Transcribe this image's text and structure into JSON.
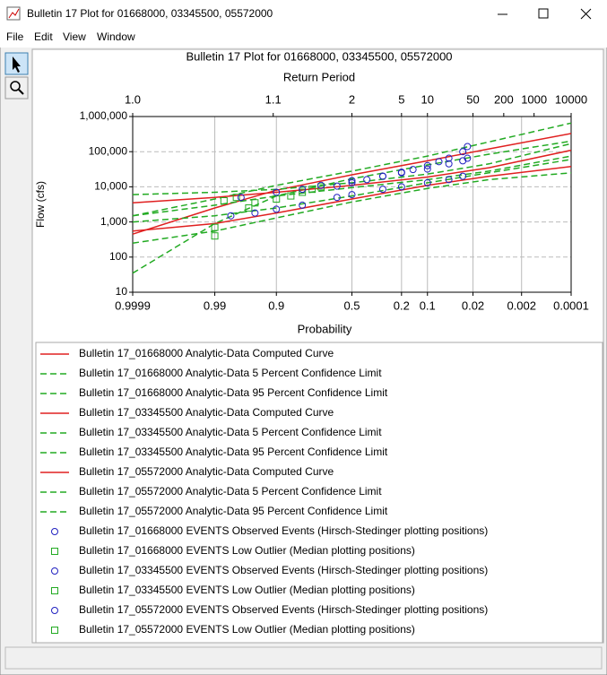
{
  "window": {
    "title": "Bulletin 17 Plot for 01668000, 03345500, 05572000",
    "menu": [
      "File",
      "Edit",
      "View",
      "Window"
    ]
  },
  "chart_data": {
    "type": "probability",
    "title": "Bulletin 17 Plot for 01668000, 03345500, 05572000",
    "x2label": "Return Period",
    "xlabel": "Probability",
    "ylabel": "Flow (cfs)",
    "log_y": true,
    "grid": true,
    "ylim": [
      10,
      1000000
    ],
    "yticks": [
      10,
      100,
      {
        "value": 1000,
        "label": "1,000"
      },
      {
        "value": 10000,
        "label": "10,000"
      },
      {
        "value": 100000,
        "label": "100,000"
      },
      {
        "value": 1000000,
        "label": "1,000,000"
      }
    ],
    "xlim": [
      0.9999,
      0.0001
    ],
    "xticks": [
      0.9999,
      0.99,
      0.9,
      0.5,
      0.2,
      0.1,
      0.02,
      0.002,
      0.0001
    ],
    "x2ticks": [
      {
        "value": 1.0001,
        "label": "1.0"
      },
      1.1,
      2,
      5,
      10,
      50,
      200,
      1000,
      10000
    ],
    "series": [
      {
        "name": "Bulletin 17_01668000 Analytic-Data Computed Curve",
        "style": "solid",
        "color": "#e02020",
        "x": [
          0.9999,
          0.99,
          0.9,
          0.5,
          0.1,
          0.01,
          0.0001
        ],
        "values": [
          450,
          2500,
          8000,
          22000,
          55000,
          120000,
          330000
        ]
      },
      {
        "name": "Bulletin 17_01668000 Analytic-Data 5 Percent Confidence Limit",
        "style": "dashed",
        "color": "#22aa22",
        "x": [
          0.9999,
          0.99,
          0.9,
          0.5,
          0.1,
          0.01,
          0.0001
        ],
        "values": [
          1500,
          4500,
          11000,
          28000,
          75000,
          190000,
          650000
        ]
      },
      {
        "name": "Bulletin 17_01668000 Analytic-Data 95 Percent Confidence Limit",
        "style": "dashed",
        "color": "#22aa22",
        "x": [
          0.9999,
          0.99,
          0.9,
          0.5,
          0.1,
          0.01,
          0.0001
        ],
        "values": [
          35,
          900,
          5500,
          17000,
          42000,
          85000,
          200000
        ]
      },
      {
        "name": "Bulletin 17_03345500 Analytic-Data Computed Curve",
        "style": "solid",
        "color": "#e02020",
        "x": [
          0.9999,
          0.99,
          0.9,
          0.5,
          0.1,
          0.01,
          0.0001
        ],
        "values": [
          3500,
          5000,
          7000,
          11000,
          19000,
          35000,
          110000
        ]
      },
      {
        "name": "Bulletin 17_03345500 Analytic-Data 5 Percent Confidence Limit",
        "style": "dashed",
        "color": "#22aa22",
        "x": [
          0.9999,
          0.99,
          0.9,
          0.5,
          0.1,
          0.01,
          0.0001
        ],
        "values": [
          6000,
          7000,
          8500,
          13000,
          23000,
          45000,
          170000
        ]
      },
      {
        "name": "Bulletin 17_03345500 Analytic-Data 95 Percent Confidence Limit",
        "style": "dashed",
        "color": "#22aa22",
        "x": [
          0.9999,
          0.99,
          0.9,
          0.5,
          0.1,
          0.01,
          0.0001
        ],
        "values": [
          1500,
          3000,
          5500,
          9500,
          16000,
          28000,
          75000
        ]
      },
      {
        "name": "Bulletin 17_05572000 Analytic-Data Computed Curve",
        "style": "solid",
        "color": "#e02020",
        "x": [
          0.9999,
          0.99,
          0.9,
          0.5,
          0.1,
          0.01,
          0.0001
        ],
        "values": [
          550,
          900,
          1800,
          4500,
          11000,
          20000,
          38000
        ]
      },
      {
        "name": "Bulletin 17_05572000 Analytic-Data 5 Percent Confidence Limit",
        "style": "dashed",
        "color": "#22aa22",
        "x": [
          0.9999,
          0.99,
          0.9,
          0.5,
          0.1,
          0.01,
          0.0001
        ],
        "values": [
          1000,
          1500,
          2500,
          5500,
          13000,
          25000,
          60000
        ]
      },
      {
        "name": "Bulletin 17_05572000 Analytic-Data 95 Percent Confidence Limit",
        "style": "dashed",
        "color": "#22aa22",
        "x": [
          0.9999,
          0.99,
          0.9,
          0.5,
          0.1,
          0.01,
          0.0001
        ],
        "values": [
          250,
          550,
          1300,
          3700,
          9000,
          16000,
          25000
        ]
      },
      {
        "name": "Bulletin 17_01668000 EVENTS Observed Events (Hirsch-Stedinger plotting positions)",
        "style": "circle",
        "color": "#2020c0",
        "x": [
          0.6,
          0.5,
          0.4,
          0.3,
          0.2,
          0.15,
          0.1,
          0.07,
          0.05,
          0.03,
          0.025
        ],
        "values": [
          10500,
          13000,
          16000,
          20000,
          26000,
          31000,
          40000,
          52000,
          65000,
          100000,
          140000
        ]
      },
      {
        "name": "Bulletin 17_01668000 EVENTS Low Outlier (Median plotting positions)",
        "style": "square",
        "color": "#22aa22",
        "x": [
          0.99,
          0.99,
          0.985,
          0.975,
          0.96,
          0.95,
          0.9,
          0.85,
          0.8,
          0.75,
          0.7
        ],
        "values": [
          400,
          700,
          4000,
          5000,
          2500,
          3500,
          4500,
          5500,
          7000,
          8500,
          10000
        ]
      },
      {
        "name": "Bulletin 17_03345500 EVENTS Observed Events (Hirsch-Stedinger plotting positions)",
        "style": "circle",
        "color": "#2020c0",
        "x": [
          0.97,
          0.9,
          0.8,
          0.7,
          0.5,
          0.3,
          0.2,
          0.1,
          0.05,
          0.03,
          0.025
        ],
        "values": [
          5000,
          7000,
          8500,
          11000,
          15000,
          20000,
          25000,
          32000,
          45000,
          55000,
          65000
        ]
      },
      {
        "name": "Bulletin 17_03345500 EVENTS Low Outlier (Median plotting positions)",
        "style": "square",
        "color": "#22aa22",
        "x": [],
        "values": []
      },
      {
        "name": "Bulletin 17_05572000 EVENTS Observed Events (Hirsch-Stedinger plotting positions)",
        "style": "circle",
        "color": "#2020c0",
        "x": [
          0.98,
          0.95,
          0.9,
          0.8,
          0.6,
          0.5,
          0.3,
          0.2,
          0.1,
          0.05,
          0.03
        ],
        "values": [
          1500,
          1800,
          2300,
          3000,
          5000,
          6000,
          8500,
          10000,
          13000,
          16000,
          20000
        ]
      },
      {
        "name": "Bulletin 17_05572000 EVENTS Low Outlier (Median plotting positions)",
        "style": "square",
        "color": "#22aa22",
        "x": [],
        "values": []
      }
    ]
  }
}
